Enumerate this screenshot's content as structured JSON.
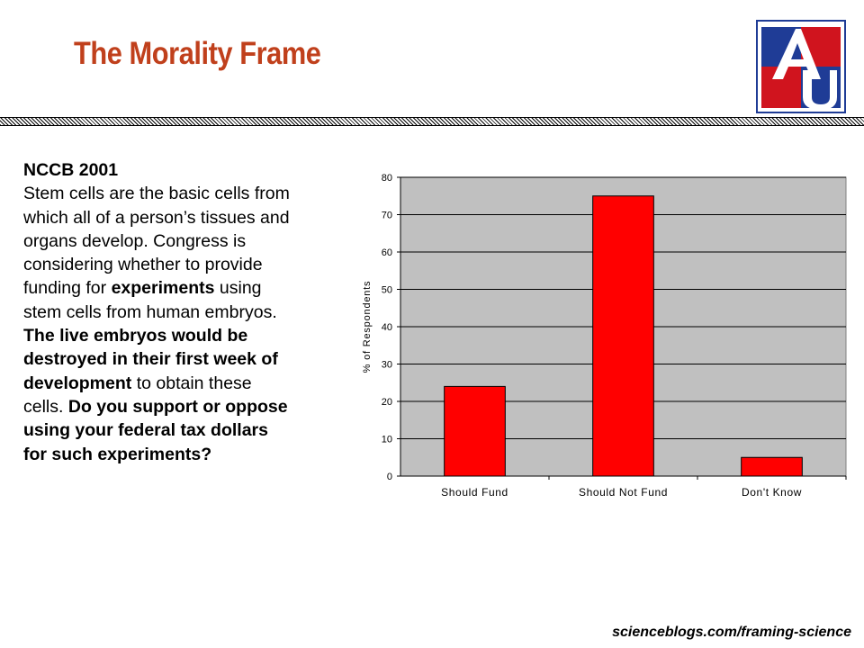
{
  "slide": {
    "title": "The Morality Frame",
    "title_color": "#c0401c",
    "footer": "scienceblogs.com/framing-science"
  },
  "logo": {
    "icon": "american-university-au-logo",
    "letters": "AU",
    "colors": {
      "blue": "#1f3c96",
      "red": "#d0141e",
      "border": "#1f3c96"
    }
  },
  "question": {
    "lines": [
      [
        {
          "t": "NCCB 2001",
          "b": true
        }
      ],
      [
        {
          "t": "Stem cells are the basic cells from",
          "b": false
        }
      ],
      [
        {
          "t": "which all of a person’s tissues and",
          "b": false
        }
      ],
      [
        {
          "t": "organs develop. Congress is",
          "b": false
        }
      ],
      [
        {
          "t": "considering whether to provide",
          "b": false
        }
      ],
      [
        {
          "t": "funding for ",
          "b": false
        },
        {
          "t": "experiments",
          "b": true
        },
        {
          "t": " using",
          "b": false
        }
      ],
      [
        {
          "t": "stem cells from human embryos.",
          "b": false
        }
      ],
      [
        {
          "t": "The live embryos would be",
          "b": true
        }
      ],
      [
        {
          "t": "destroyed in their first week of",
          "b": true
        }
      ],
      [
        {
          "t": "development",
          "b": true
        },
        {
          "t": " to obtain these",
          "b": false
        }
      ],
      [
        {
          "t": "cells.  ",
          "b": false
        },
        {
          "t": "Do you support or oppose",
          "b": true
        }
      ],
      [
        {
          "t": "using your federal tax dollars",
          "b": true
        }
      ],
      [
        {
          "t": "for such experiments?",
          "b": true
        }
      ]
    ]
  },
  "chart_data": {
    "type": "bar",
    "categories": [
      "Should Fund",
      "Should Not Fund",
      "Don't Know"
    ],
    "values": [
      24,
      75,
      5
    ],
    "ylabel": "% of Respondents",
    "xlabel": "",
    "ylim": [
      0,
      80
    ],
    "yticks": [
      0,
      10,
      20,
      30,
      40,
      50,
      60,
      70,
      80
    ],
    "grid": true,
    "legend": "none",
    "bar_color": "#ff0000",
    "plot_background": "#c0c0c0"
  }
}
